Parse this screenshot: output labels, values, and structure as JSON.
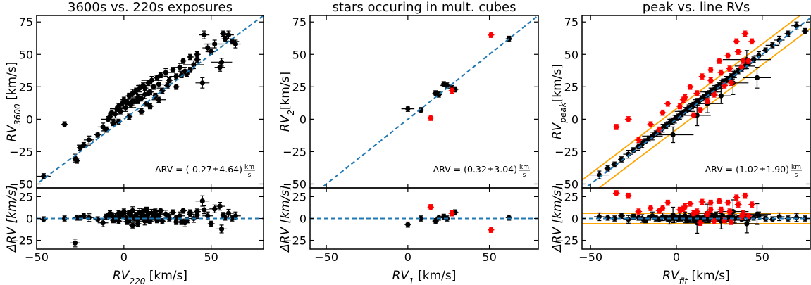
{
  "colors": {
    "points": "#000000",
    "highlight": "#ff0000",
    "fit_line": "#1f77b4",
    "band": "#ffa500"
  },
  "chart_data": [
    {
      "type": "scatter",
      "title": "3600s vs. 220s exposures",
      "xlabel": "RV",
      "xlabel_sub": "220",
      "xlabel_unit": " [km/s]",
      "ylabel": "RV",
      "ylabel_sub": "3600",
      "ylabel_unit": " [km/s]",
      "resid_ylabel": "ΔRV [km/s]",
      "annotation": "ΔRV = (-0.27±4.64)",
      "annotation_unit_num": "km",
      "annotation_unit_den": "s",
      "xlim": [
        -50,
        80
      ],
      "ylim": [
        -53,
        80
      ],
      "resid_ylim": [
        -35,
        35
      ],
      "xticks": [
        -50,
        0,
        50
      ],
      "yticks": [
        -50,
        -25,
        0,
        25,
        50,
        75
      ],
      "resid_yticks": [
        -25,
        0,
        25
      ],
      "x": [
        -46,
        -34,
        -28,
        -27,
        -25,
        -23,
        -20,
        -15,
        -12,
        -10,
        -9,
        -8,
        -7,
        -6,
        -5,
        -4,
        -3,
        -2,
        -1,
        0,
        1,
        2,
        3,
        4,
        5,
        6,
        7,
        8,
        9,
        10,
        11,
        12,
        13,
        14,
        15,
        16,
        17,
        18,
        19,
        20,
        21,
        22,
        24,
        26,
        28,
        30,
        32,
        34,
        36,
        38,
        40,
        42,
        45,
        48,
        50,
        52,
        55,
        57,
        58,
        60,
        62,
        64,
        3,
        10,
        15,
        20,
        30,
        35,
        46,
        42,
        56,
        -3,
        8,
        14,
        25,
        33,
        38,
        12,
        5
      ],
      "y": [
        -44,
        -4,
        -30,
        -32,
        -22,
        -20,
        -16,
        -12,
        -6,
        -8,
        0,
        2,
        5,
        -3,
        4,
        8,
        10,
        6,
        12,
        15,
        9,
        13,
        18,
        11,
        20,
        14,
        22,
        17,
        24,
        16,
        26,
        19,
        12,
        28,
        21,
        30,
        25,
        18,
        32,
        27,
        34,
        22,
        36,
        30,
        38,
        33,
        40,
        45,
        35,
        48,
        42,
        50,
        28,
        55,
        52,
        58,
        40,
        66,
        62,
        65,
        60,
        58,
        2,
        6,
        10,
        15,
        25,
        37,
        65,
        46,
        44,
        -2,
        14,
        20,
        26,
        34,
        38,
        24,
        14
      ],
      "ref_line": [
        [
          -55,
          -55
        ],
        [
          85,
          85
        ]
      ],
      "resid": [
        -1,
        0,
        -28,
        1,
        1,
        3,
        1,
        -1,
        -5,
        2,
        3,
        6,
        4,
        -2,
        1,
        0,
        -3,
        3,
        5,
        8,
        1,
        -4,
        6,
        3,
        9,
        0,
        4,
        -6,
        7,
        2,
        8,
        -3,
        10,
        5,
        -1,
        6,
        2,
        8,
        -2,
        4,
        9,
        -3,
        5,
        0,
        7,
        -4,
        3,
        9,
        -2,
        5,
        0,
        8,
        20,
        3,
        -6,
        11,
        14,
        4,
        1,
        6,
        0,
        3,
        -2,
        5,
        -3,
        2,
        1,
        -5,
        10,
        4,
        -12,
        6,
        -1,
        -2,
        3,
        -4,
        7,
        2,
        -8
      ],
      "err": [
        2,
        2,
        3,
        2,
        2,
        2,
        3,
        2,
        3,
        2,
        2,
        2,
        2,
        2,
        3,
        2,
        2,
        2,
        2,
        2,
        3,
        2,
        2,
        2,
        3,
        2,
        2,
        2,
        3,
        2,
        2,
        3,
        2,
        2,
        2,
        3,
        2,
        2,
        2,
        3,
        2,
        2,
        3,
        2,
        2,
        2,
        3,
        2,
        2,
        2,
        3,
        2,
        4,
        3,
        2,
        3,
        3,
        2,
        2,
        3,
        2,
        3,
        2,
        2,
        2,
        2,
        2,
        3,
        3,
        2,
        3,
        2,
        2,
        2,
        2,
        2,
        2,
        2,
        2
      ],
      "highlight_x": [],
      "highlight_y": [],
      "highlight_resid": []
    },
    {
      "type": "scatter",
      "title": "stars occuring in mult. cubes",
      "xlabel": "RV",
      "xlabel_sub": "1",
      "xlabel_unit": " [km/s]",
      "ylabel": "RV",
      "ylabel_sub": "2",
      "ylabel_unit": "[km/s]",
      "resid_ylabel": "ΔRV [km/s]",
      "annotation": "ΔRV = (0.32±3.04)",
      "annotation_unit_num": "km",
      "annotation_unit_den": "s",
      "xlim": [
        -60,
        80
      ],
      "ylim": [
        -53,
        80
      ],
      "resid_ylim": [
        -35,
        35
      ],
      "xticks": [
        -50,
        0,
        50
      ],
      "yticks": [
        -50,
        -25,
        0,
        25,
        50,
        75
      ],
      "resid_yticks": [
        -25,
        0,
        25
      ],
      "x": [
        0,
        8,
        17,
        19,
        22,
        24,
        27,
        29,
        62
      ],
      "y": [
        8,
        7,
        20,
        19,
        27,
        26,
        24,
        23,
        62
      ],
      "ref_line": [
        [
          -55,
          -55
        ],
        [
          85,
          85
        ]
      ],
      "resid": [
        -7,
        0,
        -3,
        1,
        2,
        0,
        6,
        7,
        1
      ],
      "err": [
        2,
        2,
        2,
        2,
        2,
        2,
        2,
        2,
        2
      ],
      "highlight_x": [
        14,
        27,
        51
      ],
      "highlight_y": [
        1,
        22,
        65
      ],
      "highlight_resid": [
        13,
        6,
        -13
      ]
    },
    {
      "type": "scatter",
      "title": "peak vs. line RVs",
      "xlabel": "RV",
      "xlabel_sub": "fit",
      "xlabel_unit": " [km/s]",
      "ylabel": "RV",
      "ylabel_sub": "peak",
      "ylabel_unit": "[km/s]",
      "resid_ylabel": "ΔRV [km/s]",
      "annotation": "ΔRV = (1.02±1.90)",
      "annotation_unit_num": "km",
      "annotation_unit_den": "s",
      "xlim": [
        -55,
        78
      ],
      "ylim": [
        -53,
        80
      ],
      "resid_ylim": [
        -35,
        35
      ],
      "xticks": [
        -50,
        0,
        50
      ],
      "yticks": [
        -50,
        -25,
        0,
        25,
        50,
        75
      ],
      "resid_yticks": [
        -25,
        0,
        25
      ],
      "x": [
        -45,
        -40,
        -36,
        -32,
        -28,
        -25,
        -22,
        -20,
        -18,
        -16,
        -14,
        -12,
        -10,
        -8,
        -6,
        -5,
        -4,
        -3,
        -2,
        -1,
        0,
        1,
        2,
        3,
        4,
        5,
        6,
        7,
        8,
        9,
        10,
        11,
        12,
        13,
        14,
        15,
        16,
        17,
        18,
        19,
        20,
        21,
        22,
        23,
        24,
        25,
        26,
        27,
        28,
        29,
        30,
        32,
        34,
        36,
        38,
        40,
        42,
        45,
        48,
        52,
        56,
        60,
        65,
        70,
        75,
        -2,
        12,
        18,
        26,
        33,
        41,
        47
      ],
      "y": [
        -43,
        -38,
        -35,
        -31,
        -27,
        -24,
        -21,
        -19,
        -17,
        -15,
        -13,
        -11,
        -9,
        -7,
        -5,
        -4,
        -3,
        -2,
        -1,
        0,
        1,
        2,
        3,
        4,
        5,
        6,
        7,
        8,
        9,
        10,
        11,
        12,
        13,
        14,
        15,
        16,
        17,
        18,
        19,
        20,
        21,
        22,
        23,
        24,
        25,
        26,
        27,
        28,
        29,
        30,
        31,
        33,
        35,
        37,
        39,
        41,
        43,
        46,
        49,
        53,
        57,
        61,
        66,
        72,
        68,
        -12,
        3,
        12,
        18,
        28,
        46,
        32
      ],
      "ref_line": [
        [
          -55,
          -55
        ],
        [
          85,
          85
        ]
      ],
      "band_offset": 8,
      "resid": [
        2,
        1,
        0,
        3,
        -1,
        2,
        1,
        0,
        -2,
        1,
        3,
        0,
        -1,
        2,
        1,
        0,
        -2,
        1,
        3,
        0,
        1,
        -1,
        2,
        0,
        1,
        3,
        -2,
        0,
        1,
        2,
        -1,
        0,
        2,
        1,
        -3,
        0,
        1,
        2,
        0,
        -1,
        1,
        2,
        0,
        3,
        -1,
        0,
        1,
        2,
        0,
        -2,
        1,
        3,
        0,
        1,
        -1,
        2,
        0,
        1,
        3,
        0,
        -1,
        2,
        0,
        1,
        0,
        4,
        -5,
        6,
        -3,
        8,
        -6,
        5
      ],
      "err": [
        3,
        2,
        2,
        2,
        3,
        2,
        2,
        3,
        2,
        2,
        3,
        2,
        2,
        3,
        2,
        2,
        3,
        2,
        2,
        3,
        2,
        2,
        3,
        2,
        2,
        3,
        2,
        2,
        3,
        2,
        2,
        3,
        2,
        2,
        3,
        2,
        2,
        3,
        2,
        2,
        3,
        2,
        2,
        3,
        2,
        2,
        3,
        2,
        2,
        3,
        2,
        2,
        3,
        2,
        2,
        3,
        2,
        2,
        3,
        2,
        2,
        3,
        2,
        3,
        2,
        6,
        8,
        7,
        6,
        9,
        7,
        8
      ],
      "highlight_x": [
        -35,
        -28,
        -22,
        -15,
        -10,
        -5,
        2,
        5,
        8,
        10,
        14,
        15,
        18,
        20,
        22,
        25,
        28,
        30,
        32,
        35,
        36,
        38,
        40,
        42,
        44,
        20,
        12,
        4,
        -8,
        26,
        39,
        31
      ],
      "highlight_y": [
        -6,
        0,
        -16,
        -4,
        -8,
        12,
        10,
        17,
        25,
        3,
        7,
        33,
        14,
        38,
        19,
        45,
        26,
        49,
        28,
        60,
        52,
        40,
        66,
        45,
        60,
        30,
        20,
        15,
        5,
        36,
        45,
        39
      ],
      "highlight_resid": [
        29,
        26,
        8,
        12,
        9,
        18,
        10,
        14,
        17,
        6,
        -5,
        19,
        5,
        18,
        -3,
        20,
        -2,
        18,
        -4,
        24,
        16,
        2,
        26,
        3,
        16,
        10,
        8,
        11,
        12,
        10,
        6,
        8
      ]
    }
  ]
}
